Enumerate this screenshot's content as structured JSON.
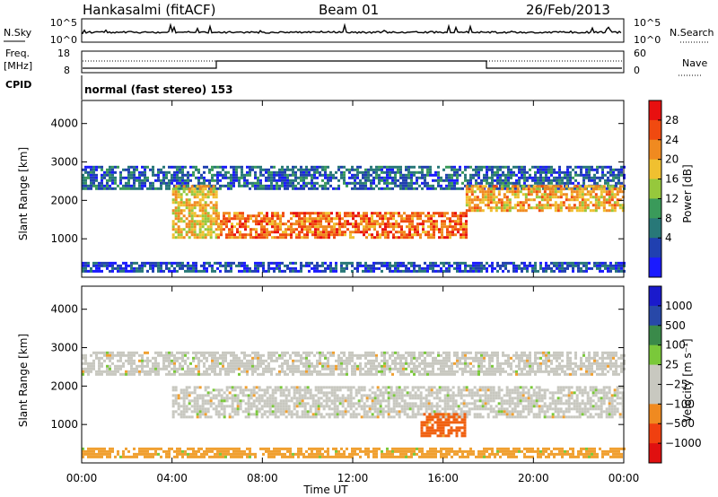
{
  "header": {
    "station": "Hankasalmi (fitACF)",
    "beam": "Beam 01",
    "date": "26/Feb/2013"
  },
  "strips": {
    "nsky_label": "N.Sky",
    "nsearch_label": "N.Search",
    "nsky_ticks": [
      "10^5",
      "10^0"
    ],
    "nsky_ticks_right": [
      "10^5",
      "10^0"
    ],
    "freq_label_1": "Freq.",
    "freq_label_2": "[MHz]",
    "freq_ticks": [
      "18",
      "8"
    ],
    "nave_label": "Nave",
    "nave_ticks": [
      "60",
      "0"
    ],
    "cpid_label": "CPID",
    "cpid_text": "normal (fast stereo) 153"
  },
  "colors": {
    "power": [
      "#1a1aff",
      "#2040b0",
      "#287878",
      "#3a9a5a",
      "#96c83c",
      "#f0c030",
      "#f08a20",
      "#f04a10",
      "#e81010"
    ],
    "velocity": [
      "#e01010",
      "#f04010",
      "#f08a20",
      "#c8c8c0",
      "#c8c8c0",
      "#7ac83a",
      "#3a8a4a",
      "#2848a8",
      "#1a1acc"
    ],
    "background": "#ffffff"
  },
  "chart_data": [
    {
      "type": "heatmap",
      "name": "power",
      "xlabel": "Time UT",
      "ylabel": "Slant Range [km]",
      "colorbar_label": "Power [dB]",
      "colorbar_ticks": [
        "28",
        "24",
        "20",
        "16",
        "12",
        "8",
        "4"
      ],
      "ylim": [
        0,
        4600
      ],
      "y_ticks": [
        "4000",
        "3000",
        "2000",
        "1000"
      ],
      "x_ticks": [
        "00:00",
        "04:00",
        "08:00",
        "12:00",
        "16:00",
        "20:00",
        "00:00"
      ],
      "xlim_hours": [
        0,
        24
      ],
      "grid": false,
      "regions": [
        {
          "label": "upper band",
          "t_start": 0,
          "t_end": 24,
          "range_km": [
            2300,
            2900
          ],
          "power_db": 6
        },
        {
          "label": "evening band",
          "t_start": 4.0,
          "t_end": 6.0,
          "range_km": [
            1000,
            2400
          ],
          "power_db": 20
        },
        {
          "label": "main band",
          "t_start": 6.0,
          "t_end": 17.0,
          "range_km": [
            1000,
            1700
          ],
          "power_db": 26
        },
        {
          "label": "rising band",
          "t_start": 17.0,
          "t_end": 24.0,
          "range_km": [
            1700,
            2400
          ],
          "power_db": 22
        },
        {
          "label": "ground clutter",
          "t_start": 0,
          "t_end": 24,
          "range_km": [
            180,
            400
          ],
          "power_db": 4
        }
      ]
    },
    {
      "type": "heatmap",
      "name": "velocity",
      "xlabel": "Time UT",
      "ylabel": "Slant Range [km]",
      "colorbar_label": "Velocity [m s⁻¹]",
      "colorbar_ticks": [
        "1000",
        "500",
        "100",
        "25",
        "−25",
        "−100",
        "−500",
        "−1000"
      ],
      "ylim": [
        0,
        4600
      ],
      "y_ticks": [
        "4000",
        "3000",
        "2000",
        "1000"
      ],
      "x_ticks": [
        "00:00",
        "04:00",
        "08:00",
        "12:00",
        "16:00",
        "20:00",
        "00:00"
      ],
      "xlim_hours": [
        0,
        24
      ],
      "grid": false,
      "regions": [
        {
          "label": "upper band",
          "t_start": 0,
          "t_end": 24,
          "range_km": [
            2300,
            2900
          ],
          "velocity": 0
        },
        {
          "label": "main band",
          "t_start": 4.0,
          "t_end": 24,
          "range_km": [
            1200,
            2000
          ],
          "velocity": 0
        },
        {
          "label": "negative patch",
          "t_start": 15.0,
          "t_end": 17.0,
          "range_km": [
            700,
            1300
          ],
          "velocity": -500
        },
        {
          "label": "ground clutter",
          "t_start": 0,
          "t_end": 24,
          "range_km": [
            180,
            400
          ],
          "velocity": -100
        }
      ]
    }
  ]
}
